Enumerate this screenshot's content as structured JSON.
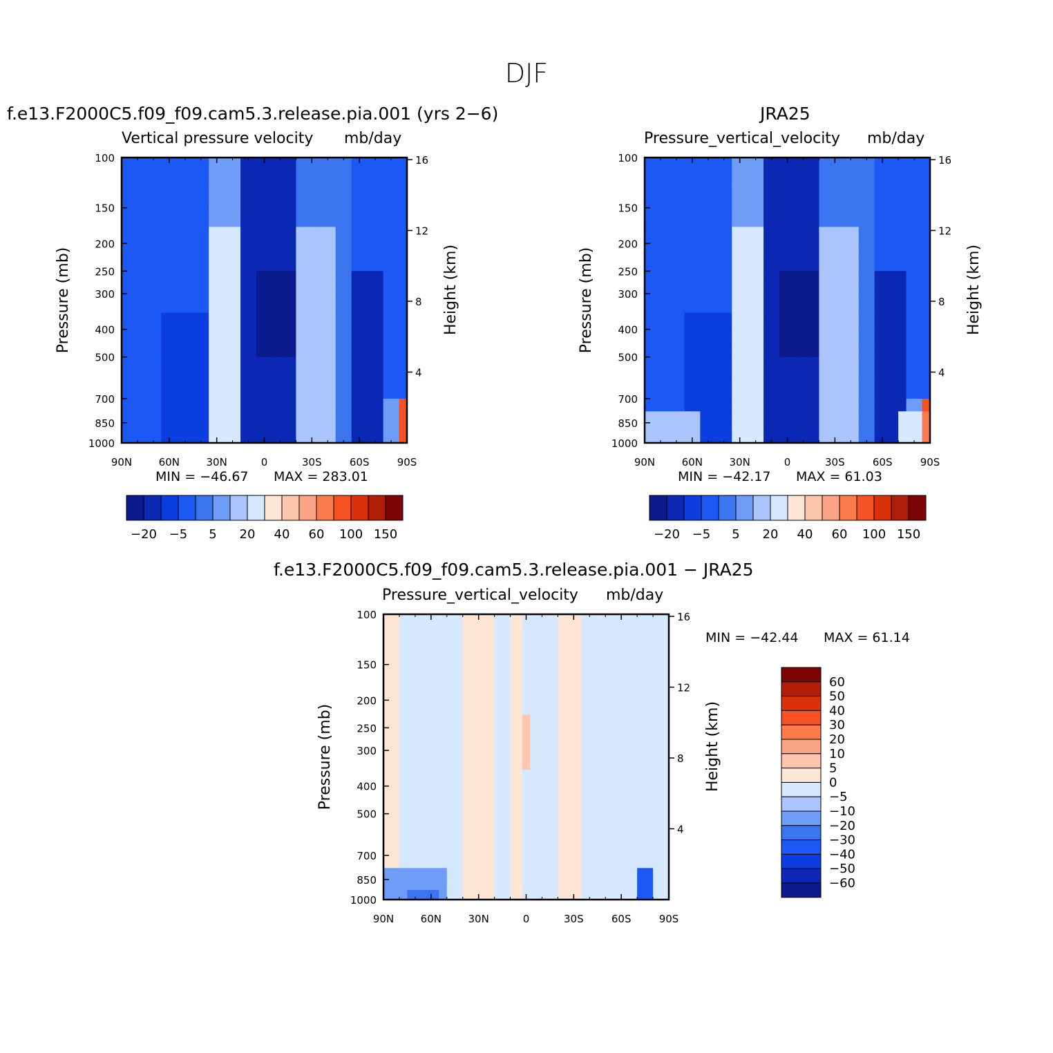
{
  "figure_title": "DJF",
  "colors": {
    "full_palette": [
      "#0b1a8c",
      "#0a28b4",
      "#0a3ee0",
      "#1b58f4",
      "#3a74ef",
      "#6f9cf6",
      "#a9c5fb",
      "#d6e8fd",
      "#fde6d6",
      "#fcc6ad",
      "#fca487",
      "#fb7b4c",
      "#f65122",
      "#dc320c",
      "#b01e08",
      "#7d0505"
    ],
    "diff_palette": [
      "#0b1a8c",
      "#0a28b4",
      "#0a3ee0",
      "#1b58f4",
      "#3a74ef",
      "#6f9cf6",
      "#a9c5fb",
      "#d6e8fd",
      "#fde6d6",
      "#fcc6ad",
      "#fca487",
      "#fb7b4c",
      "#f65122",
      "#dc320c",
      "#b01e08",
      "#7d0505"
    ]
  },
  "chart_data": [
    {
      "type": "heatmap",
      "title": "f.e13.F2000C5.f09_f09.cam5.3.release.pia.001 (yrs 2−6)",
      "variable": "Vertical pressure velocity",
      "units": "mb/day",
      "ylabel": "Pressure (mb)",
      "y2label": "Height (km)",
      "x_ticks": [
        "90N",
        "60N",
        "30N",
        "0",
        "30S",
        "60S",
        "90S"
      ],
      "y_ticks": [
        "100",
        "150",
        "200",
        "250",
        "300",
        "400",
        "500",
        "700",
        "850",
        "1000"
      ],
      "y2_ticks": [
        "16",
        "12",
        "8",
        "4"
      ],
      "y_scale": "log",
      "min_label": "MIN = −46.67",
      "max_label": "MAX = 283.01",
      "colorbar_labels": [
        "−20",
        "−5",
        "5",
        "20",
        "40",
        "60",
        "100",
        "150"
      ]
    },
    {
      "type": "heatmap",
      "title": "JRA25",
      "variable": "Pressure_vertical_velocity",
      "units": "mb/day",
      "ylabel": "Pressure (mb)",
      "y2label": "Height (km)",
      "x_ticks": [
        "90N",
        "60N",
        "30N",
        "0",
        "30S",
        "60S",
        "90S"
      ],
      "y_ticks": [
        "100",
        "150",
        "200",
        "250",
        "300",
        "400",
        "500",
        "700",
        "850",
        "1000"
      ],
      "y2_ticks": [
        "16",
        "12",
        "8",
        "4"
      ],
      "y_scale": "log",
      "min_label": "MIN = −42.17",
      "max_label": "MAX =  61.03",
      "colorbar_labels": [
        "−20",
        "−5",
        "5",
        "20",
        "40",
        "60",
        "100",
        "150"
      ]
    },
    {
      "type": "heatmap",
      "title": "f.e13.F2000C5.f09_f09.cam5.3.release.pia.001 − JRA25",
      "variable": "Pressure_vertical_velocity",
      "units": "mb/day",
      "ylabel": "Pressure (mb)",
      "y2label": "Height (km)",
      "x_ticks": [
        "90N",
        "60N",
        "30N",
        "0",
        "30S",
        "60S",
        "90S"
      ],
      "y_ticks": [
        "100",
        "150",
        "200",
        "250",
        "300",
        "400",
        "500",
        "700",
        "850",
        "1000"
      ],
      "y2_ticks": [
        "16",
        "12",
        "8",
        "4"
      ],
      "y_scale": "log",
      "min_label": "MIN = −42.44",
      "max_label": "MAX =  61.14",
      "colorbar_labels": [
        "60",
        "50",
        "40",
        "30",
        "20",
        "10",
        "5",
        "0",
        "−5",
        "−10",
        "−20",
        "−30",
        "−40",
        "−50",
        "−60"
      ]
    }
  ]
}
